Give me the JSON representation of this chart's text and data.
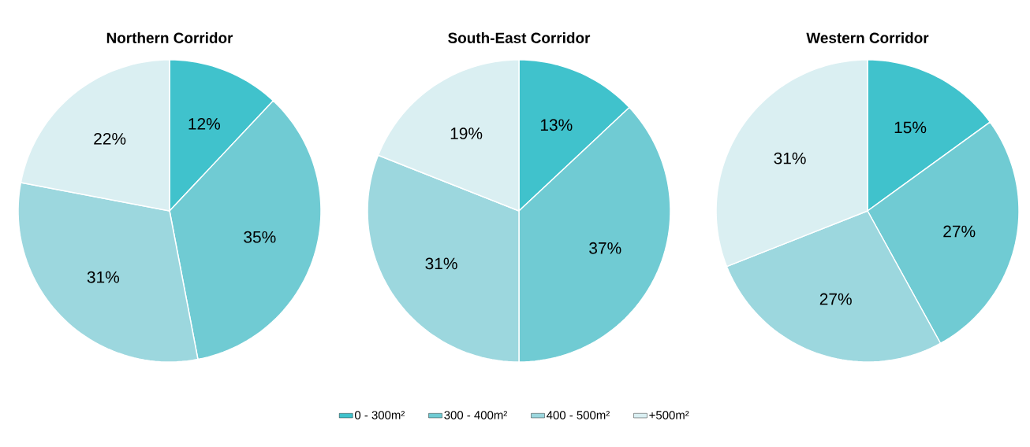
{
  "chart_data": [
    {
      "type": "pie",
      "title": "Northern Corridor",
      "categories": [
        "0 - 300m²",
        "300 - 400m²",
        "400 - 500m²",
        "+500m²"
      ],
      "values": [
        12,
        35,
        31,
        22
      ],
      "value_labels": [
        "12%",
        "35%",
        "31%",
        "22%"
      ],
      "colors": [
        "#40c2cc",
        "#70cbd3",
        "#9cd7de",
        "#daeff2"
      ],
      "legend": "bottom"
    },
    {
      "type": "pie",
      "title": "South-East Corridor",
      "categories": [
        null,
        null,
        null,
        null
      ],
      "values": [
        13,
        37,
        31,
        19
      ],
      "value_labels": [
        "13%",
        "37%",
        "31%",
        "19%"
      ],
      "colors": [
        "#40c2cc",
        "#70cbd3",
        "#9cd7de",
        "#daeff2"
      ]
    },
    {
      "type": "pie",
      "title": "Western Corridor",
      "categories": [
        null,
        null,
        null,
        null
      ],
      "values": [
        15,
        27,
        27,
        31
      ],
      "value_labels": [
        "15%",
        "27%",
        "27%",
        "31%"
      ],
      "colors": [
        "#40c2cc",
        "#70cbd3",
        "#9cd7de",
        "#daeff2"
      ]
    }
  ]
}
